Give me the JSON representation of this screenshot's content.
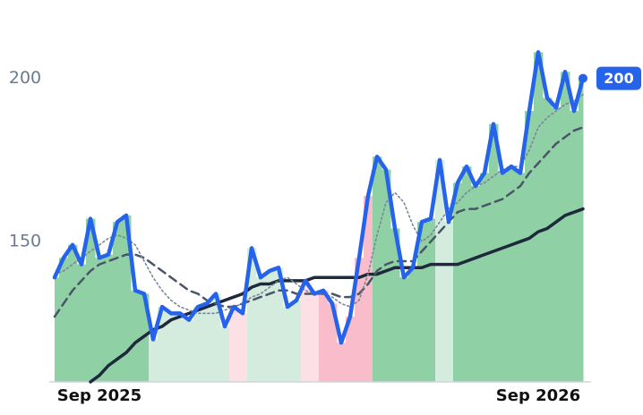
{
  "chart_data": {
    "type": "line",
    "categories": [
      null,
      null,
      null,
      null,
      null,
      "Sep 2025",
      null,
      null,
      null,
      null,
      null,
      null,
      null,
      null,
      null,
      null,
      null,
      null,
      null,
      null,
      null,
      null,
      null,
      null,
      null,
      null,
      null,
      null,
      null,
      null,
      null,
      null,
      null,
      null,
      null,
      null,
      null,
      null,
      null,
      null,
      null,
      null,
      null,
      null,
      null,
      null,
      null,
      null,
      null,
      null,
      null,
      null,
      null,
      null,
      "Sep 2026",
      null,
      null,
      null,
      null,
      null
    ],
    "series": [
      {
        "color": "#2563eb",
        "width": 4.5,
        "dash": "none",
        "values": [
          139,
          145,
          149,
          143,
          157,
          145,
          146,
          156,
          158,
          135,
          134,
          120,
          130,
          128,
          128,
          126,
          130,
          131,
          134,
          124,
          130,
          128,
          148,
          139,
          141,
          142,
          130,
          132,
          138,
          134,
          135,
          131,
          119,
          127,
          145,
          164,
          176,
          172,
          154,
          139,
          142,
          156,
          157,
          175,
          156,
          168,
          173,
          167,
          171,
          186,
          171,
          173,
          171,
          190,
          208,
          194,
          191,
          202,
          190,
          200
        ]
      },
      {
        "color": "#7a8699",
        "width": 1.6,
        "dash": "2 3",
        "values": [
          140,
          141,
          143,
          145,
          147,
          149,
          151,
          152,
          151,
          149,
          144,
          139,
          135,
          132,
          130,
          129,
          128,
          128,
          128,
          129,
          130,
          131,
          133,
          134,
          136,
          138,
          139,
          137,
          135,
          134,
          134,
          133,
          131,
          130,
          132,
          140,
          152,
          162,
          165,
          162,
          155,
          150,
          152,
          156,
          160,
          162,
          165,
          167,
          168,
          170,
          172,
          173,
          173,
          178,
          185,
          188,
          190,
          192,
          193,
          195
        ]
      },
      {
        "color": "#4a5568",
        "width": 2.5,
        "dash": "9 6",
        "values": [
          127,
          131,
          135,
          138,
          141,
          143,
          144,
          145,
          146,
          146,
          145,
          143,
          141,
          139,
          137,
          135,
          134,
          132,
          131,
          130,
          130,
          131,
          132,
          133,
          134,
          135,
          135,
          134,
          134,
          134,
          134,
          134,
          133,
          133,
          134,
          137,
          141,
          143,
          144,
          144,
          144,
          147,
          150,
          153,
          156,
          159,
          160,
          160,
          161,
          162,
          163,
          165,
          167,
          171,
          174,
          177,
          180,
          182,
          184,
          185
        ]
      },
      {
        "color": "#1e293b",
        "width": 3.5,
        "dash": "none",
        "values": [
          null,
          null,
          null,
          null,
          107,
          109,
          112,
          114,
          116,
          119,
          121,
          123,
          124,
          126,
          127,
          128,
          129,
          130,
          131,
          132,
          133,
          134,
          136,
          137,
          137,
          138,
          138,
          138,
          138,
          139,
          139,
          139,
          139,
          139,
          139,
          140,
          140,
          141,
          142,
          142,
          142,
          142,
          143,
          143,
          143,
          143,
          144,
          145,
          146,
          147,
          148,
          149,
          150,
          151,
          153,
          154,
          156,
          158,
          159,
          160
        ]
      }
    ],
    "bar_colors": [
      "#8fd0a5",
      "#8fd0a5",
      "#8fd0a5",
      "#8fd0a5",
      "#8fd0a5",
      "#8fd0a5",
      "#8fd0a5",
      "#8fd0a5",
      "#8fd0a5",
      "#8fd0a5",
      "#8fd0a5",
      "#d4ecdd",
      "#d4ecdd",
      "#d4ecdd",
      "#d4ecdd",
      "#d4ecdd",
      "#d4ecdd",
      "#d4ecdd",
      "#d4ecdd",
      "#d4ecdd",
      "#fde0e6",
      "#fde0e6",
      "#d4ecdd",
      "#d4ecdd",
      "#d4ecdd",
      "#d4ecdd",
      "#d4ecdd",
      "#d4ecdd",
      "#fde0e6",
      "#fde0e6",
      "#f9bccb",
      "#f9bccb",
      "#f9bccb",
      "#f9bccb",
      "#f9bccb",
      "#f9bccb",
      "#8fd0a5",
      "#8fd0a5",
      "#8fd0a5",
      "#8fd0a5",
      "#8fd0a5",
      "#8fd0a5",
      "#8fd0a5",
      "#d4ecdd",
      "#d4ecdd",
      "#8fd0a5",
      "#8fd0a5",
      "#8fd0a5",
      "#8fd0a5",
      "#8fd0a5",
      "#8fd0a5",
      "#8fd0a5",
      "#8fd0a5",
      "#8fd0a5",
      "#8fd0a5",
      "#8fd0a5",
      "#8fd0a5",
      "#8fd0a5",
      "#8fd0a5",
      "#8fd0a5"
    ],
    "ylim": [
      107,
      224
    ],
    "yticks": [
      150,
      200
    ],
    "badge_color": "#2563eb"
  }
}
